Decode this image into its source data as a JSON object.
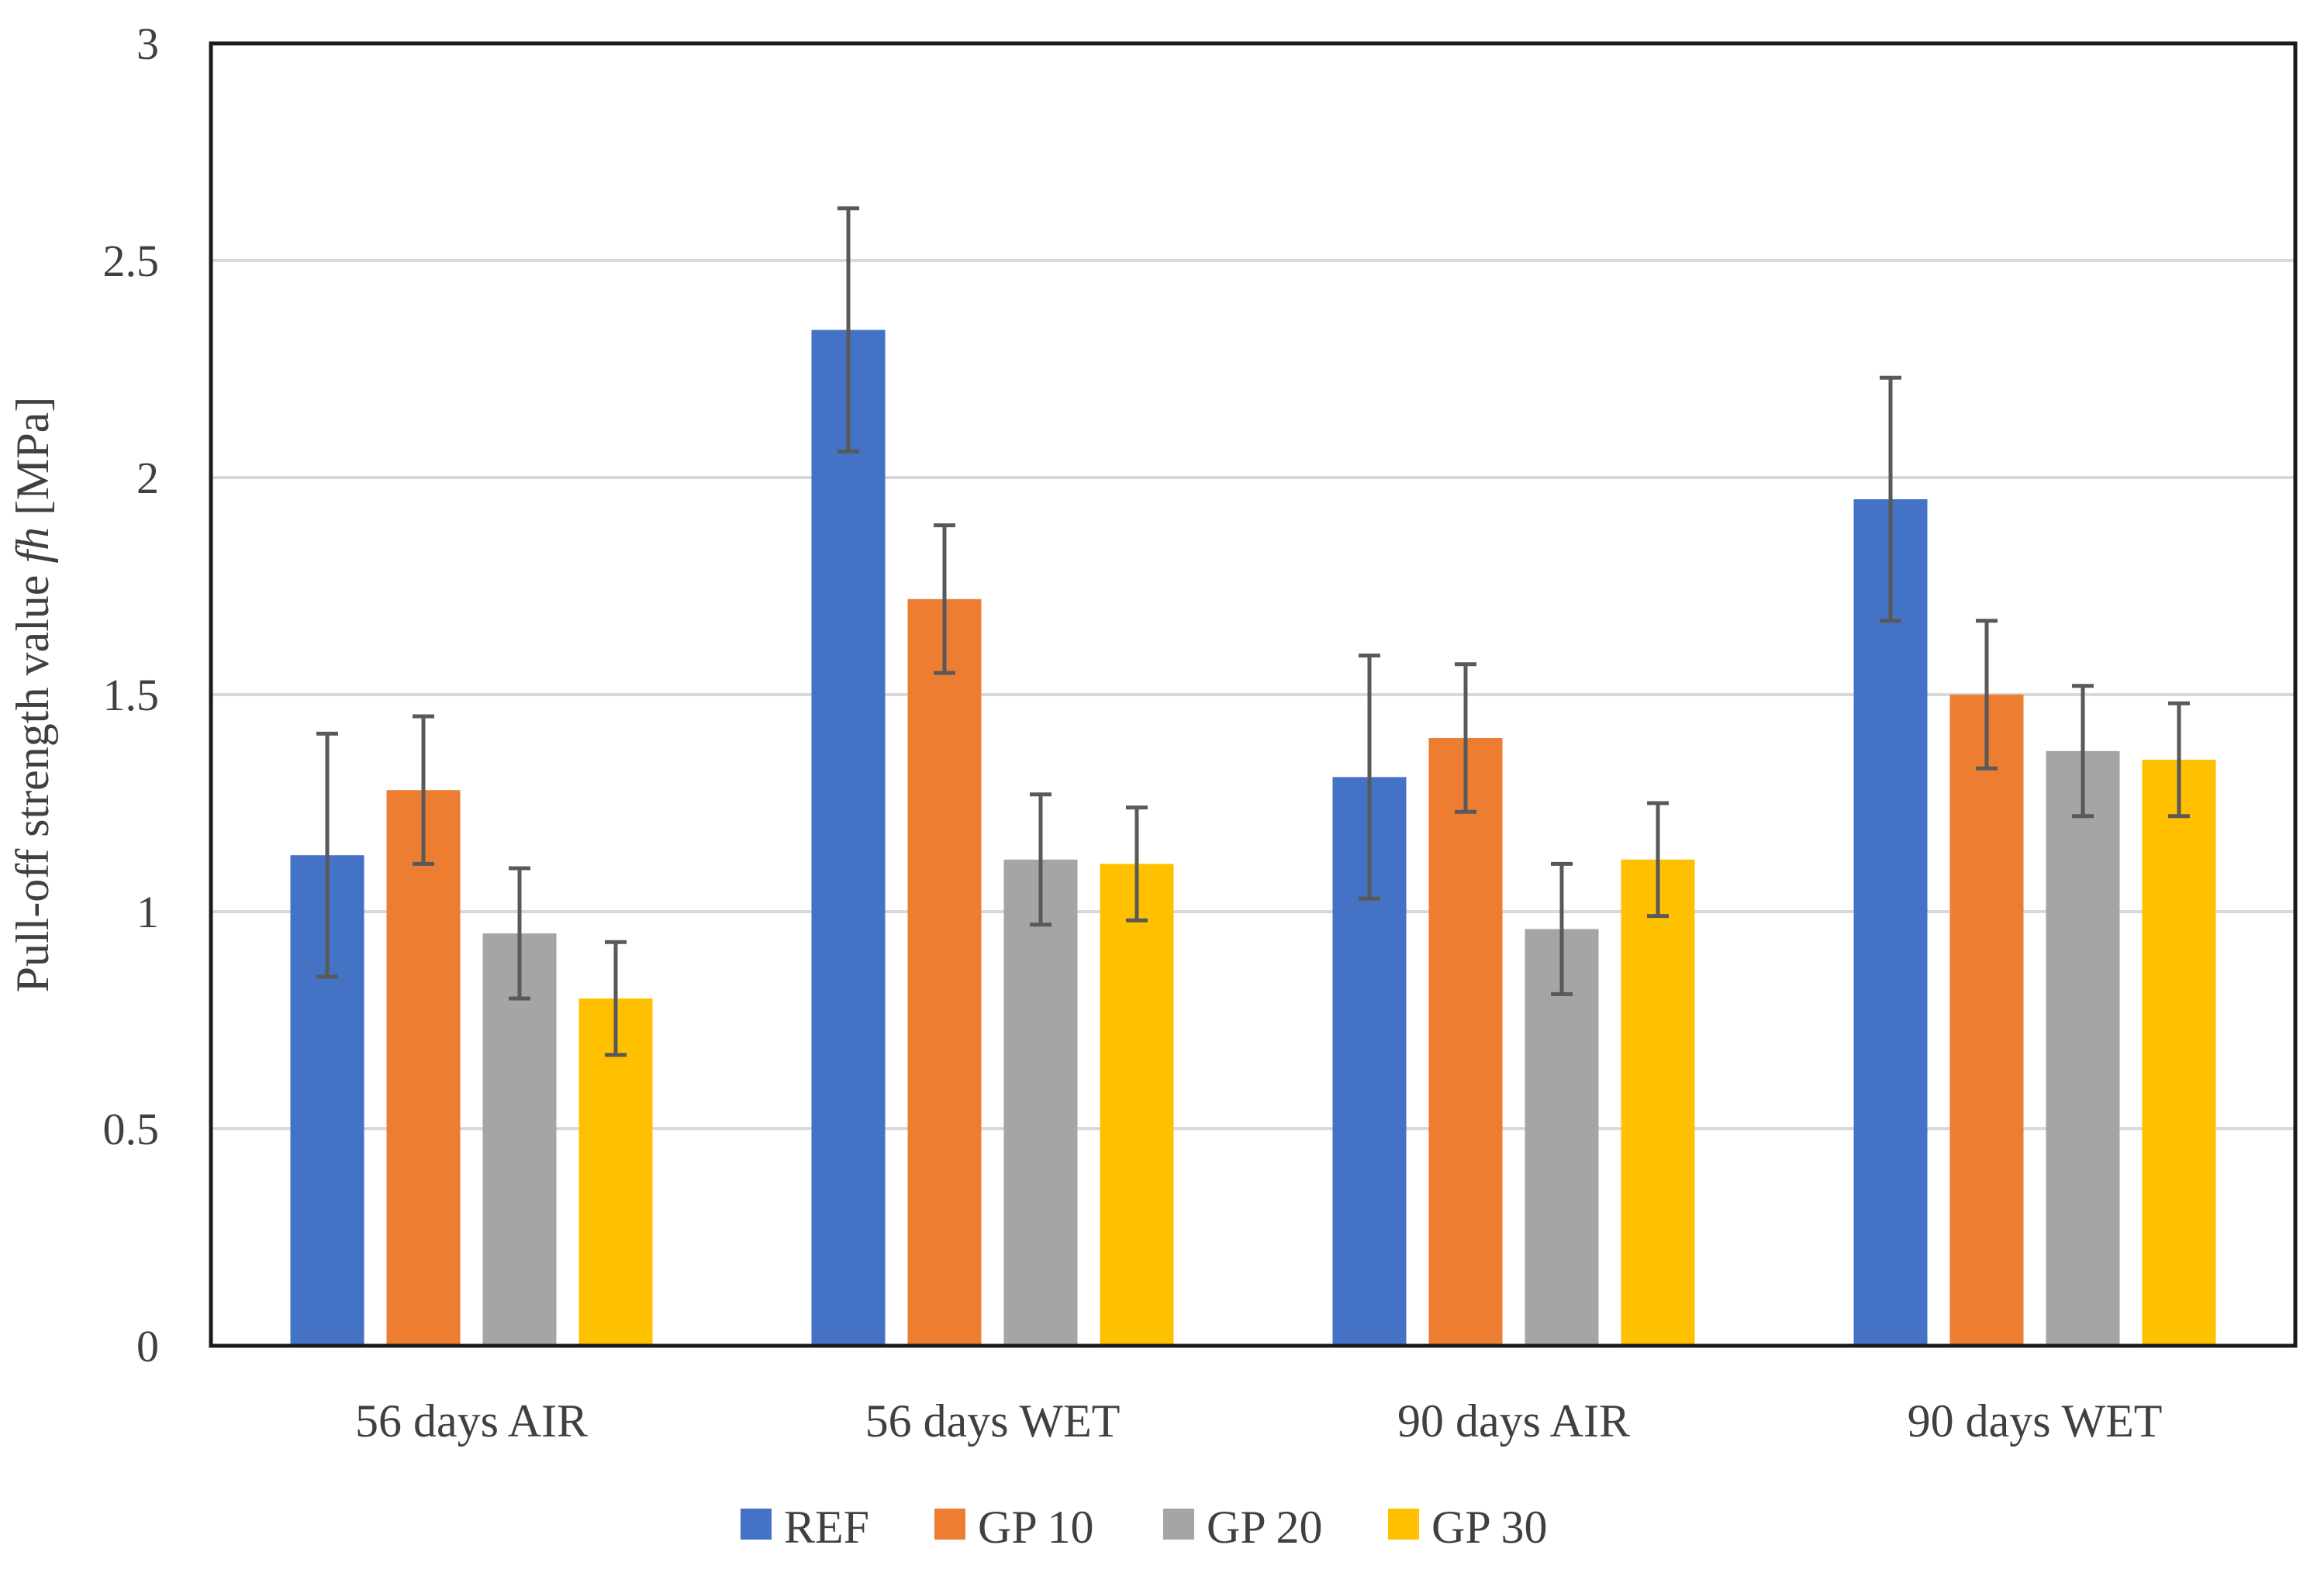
{
  "chart_data": {
    "type": "bar",
    "title": "",
    "xlabel": "",
    "ylabel_prefix": "Pull-off strength value ",
    "ylabel_italic": "fh",
    "ylabel_suffix": " [MPa]",
    "ylim": [
      0,
      3
    ],
    "yticks": [
      "0",
      "0.5",
      "1",
      "1.5",
      "2",
      "2.5",
      "3"
    ],
    "ytick_values": [
      0,
      0.5,
      1,
      1.5,
      2,
      2.5,
      3
    ],
    "categories": [
      "56 days AIR",
      "56 days WET",
      "90 days AIR",
      "90 days WET"
    ],
    "grid": "horizontal",
    "legend_position": "bottom",
    "error_bars": true,
    "series": [
      {
        "name": "REF",
        "color": "#4472C4",
        "values": [
          1.13,
          2.34,
          1.31,
          1.95
        ],
        "errors": [
          0.28,
          0.28,
          0.28,
          0.28
        ]
      },
      {
        "name": "GP 10",
        "color": "#ED7D31",
        "values": [
          1.28,
          1.72,
          1.4,
          1.5
        ],
        "errors": [
          0.17,
          0.17,
          0.17,
          0.17
        ]
      },
      {
        "name": "GP 20",
        "color": "#A5A5A5",
        "values": [
          0.95,
          1.12,
          0.96,
          1.37
        ],
        "errors": [
          0.15,
          0.15,
          0.15,
          0.15
        ]
      },
      {
        "name": "GP 30",
        "color": "#FFC000",
        "values": [
          0.8,
          1.11,
          1.12,
          1.35
        ],
        "errors": [
          0.13,
          0.13,
          0.13,
          0.13
        ]
      }
    ]
  }
}
